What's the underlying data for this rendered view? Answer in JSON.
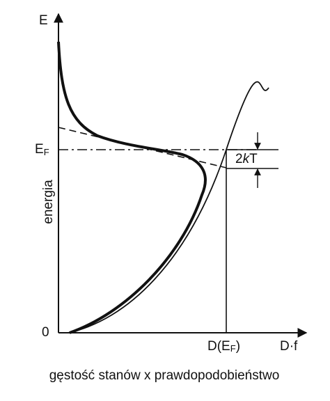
{
  "axis_labels": {
    "y_symbol": "E",
    "fermi_level": {
      "main": "E",
      "sub": "F"
    },
    "y_title": "energia",
    "origin": "0",
    "x_fermi": {
      "main": "D(E",
      "sub": "F",
      "end": ")"
    },
    "x_symbol": "D·f"
  },
  "annotation": {
    "main": "2",
    "italic": "k",
    "end": "T"
  },
  "caption": "gęstość stanów x prawdopodobieństwo"
}
